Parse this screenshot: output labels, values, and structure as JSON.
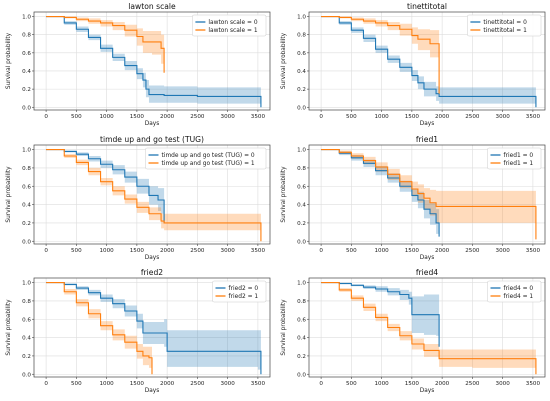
{
  "colors": {
    "group0": "#1f77b4",
    "group1": "#ff7f0e",
    "grid": "#dddddd",
    "axis": "#444444"
  },
  "chart_data": [
    {
      "type": "line",
      "title": "lawton scale",
      "xlabel": "Days",
      "ylabel": "Survival probability",
      "xlim": [
        -200,
        3700
      ],
      "ylim": [
        -0.03,
        1.05
      ],
      "xticks": [
        0,
        500,
        1000,
        1500,
        2000,
        2500,
        3000,
        3500
      ],
      "yticks": [
        0.0,
        0.2,
        0.4,
        0.6,
        0.8,
        1.0
      ],
      "grid": true,
      "legend_position": "top-right",
      "series": [
        {
          "name": "lawton scale = 0",
          "x": [
            0,
            300,
            500,
            700,
            900,
            1100,
            1300,
            1500,
            1600,
            1650,
            1700,
            1950,
            2500,
            3000,
            3500,
            3550
          ],
          "y": [
            1.0,
            0.93,
            0.86,
            0.77,
            0.65,
            0.55,
            0.46,
            0.37,
            0.3,
            0.2,
            0.14,
            0.13,
            0.12,
            0.12,
            0.12,
            0.0
          ],
          "ci_low": [
            1.0,
            0.91,
            0.83,
            0.74,
            0.61,
            0.51,
            0.41,
            0.31,
            0.22,
            0.11,
            0.05,
            0.05,
            0.04,
            0.04,
            0.04,
            0.0
          ],
          "ci_high": [
            1.0,
            0.95,
            0.89,
            0.8,
            0.69,
            0.59,
            0.51,
            0.43,
            0.38,
            0.3,
            0.24,
            0.23,
            0.22,
            0.22,
            0.22,
            0.22
          ]
        },
        {
          "name": "lawton scale = 1",
          "x": [
            0,
            300,
            500,
            700,
            900,
            1100,
            1300,
            1500,
            1600,
            1750,
            1900,
            1950
          ],
          "y": [
            1.0,
            0.99,
            0.97,
            0.95,
            0.93,
            0.9,
            0.85,
            0.78,
            0.72,
            0.72,
            0.65,
            0.38
          ],
          "ci_low": [
            1.0,
            0.98,
            0.95,
            0.92,
            0.89,
            0.85,
            0.78,
            0.68,
            0.6,
            0.58,
            0.48,
            0.18
          ],
          "ci_high": [
            1.0,
            1.0,
            0.99,
            0.98,
            0.96,
            0.94,
            0.91,
            0.87,
            0.84,
            0.84,
            0.8,
            0.62
          ]
        }
      ]
    },
    {
      "type": "line",
      "title": "tinettitotal",
      "xlabel": "Days",
      "ylabel": "Survival probability",
      "xlim": [
        -200,
        3700
      ],
      "ylim": [
        -0.03,
        1.05
      ],
      "xticks": [
        0,
        500,
        1000,
        1500,
        2000,
        2500,
        3000,
        3500
      ],
      "yticks": [
        0.0,
        0.2,
        0.4,
        0.6,
        0.8,
        1.0
      ],
      "grid": true,
      "legend_position": "top-right",
      "series": [
        {
          "name": "tinettitotal = 0",
          "x": [
            0,
            300,
            500,
            700,
            900,
            1100,
            1300,
            1500,
            1600,
            1700,
            1900,
            1950,
            2500,
            3000,
            3500,
            3550
          ],
          "y": [
            1.0,
            0.93,
            0.85,
            0.76,
            0.64,
            0.53,
            0.44,
            0.35,
            0.27,
            0.2,
            0.15,
            0.12,
            0.12,
            0.12,
            0.12,
            0.0
          ],
          "ci_low": [
            1.0,
            0.91,
            0.82,
            0.72,
            0.6,
            0.49,
            0.39,
            0.29,
            0.2,
            0.12,
            0.07,
            0.04,
            0.04,
            0.04,
            0.04,
            0.0
          ],
          "ci_high": [
            1.0,
            0.95,
            0.88,
            0.8,
            0.68,
            0.57,
            0.49,
            0.41,
            0.34,
            0.28,
            0.23,
            0.22,
            0.22,
            0.22,
            0.22,
            0.22
          ]
        },
        {
          "name": "tinettitotal = 1",
          "x": [
            0,
            300,
            500,
            700,
            900,
            1100,
            1300,
            1500,
            1600,
            1800,
            1950
          ],
          "y": [
            1.0,
            0.99,
            0.97,
            0.95,
            0.93,
            0.9,
            0.86,
            0.79,
            0.75,
            0.7,
            0.15
          ],
          "ci_low": [
            1.0,
            0.98,
            0.95,
            0.92,
            0.89,
            0.85,
            0.79,
            0.7,
            0.63,
            0.55,
            0.02
          ],
          "ci_high": [
            1.0,
            1.0,
            0.99,
            0.98,
            0.96,
            0.94,
            0.92,
            0.88,
            0.86,
            0.85,
            0.4
          ]
        }
      ]
    },
    {
      "type": "line",
      "title": "timde up and go test (TUG)",
      "xlabel": "Days",
      "ylabel": "Survival probability",
      "xlim": [
        -200,
        3700
      ],
      "ylim": [
        -0.03,
        1.05
      ],
      "xticks": [
        0,
        500,
        1000,
        1500,
        2000,
        2500,
        3000,
        3500
      ],
      "yticks": [
        0.0,
        0.2,
        0.4,
        0.6,
        0.8,
        1.0
      ],
      "grid": true,
      "legend_position": "top-right",
      "series": [
        {
          "name": "timde up and go test (TUG) = 0",
          "x": [
            0,
            300,
            500,
            700,
            900,
            1100,
            1300,
            1500,
            1700,
            1850,
            1900,
            1950
          ],
          "y": [
            1.0,
            0.98,
            0.95,
            0.9,
            0.84,
            0.78,
            0.7,
            0.6,
            0.5,
            0.45,
            0.45,
            0.2
          ],
          "ci_low": [
            1.0,
            0.97,
            0.93,
            0.87,
            0.8,
            0.73,
            0.64,
            0.52,
            0.4,
            0.33,
            0.3,
            0.05
          ],
          "ci_high": [
            1.0,
            0.99,
            0.97,
            0.93,
            0.88,
            0.83,
            0.76,
            0.68,
            0.6,
            0.58,
            0.58,
            0.4
          ]
        },
        {
          "name": "timde up and go test (TUG) = 1",
          "x": [
            0,
            300,
            500,
            700,
            900,
            1100,
            1300,
            1500,
            1700,
            1900,
            1950,
            2500,
            3000,
            3550
          ],
          "y": [
            1.0,
            0.93,
            0.86,
            0.76,
            0.65,
            0.55,
            0.46,
            0.37,
            0.3,
            0.22,
            0.2,
            0.2,
            0.2,
            0.0
          ],
          "ci_low": [
            1.0,
            0.91,
            0.83,
            0.72,
            0.61,
            0.5,
            0.41,
            0.31,
            0.23,
            0.14,
            0.12,
            0.12,
            0.12,
            0.0
          ],
          "ci_high": [
            1.0,
            0.95,
            0.89,
            0.8,
            0.69,
            0.6,
            0.51,
            0.43,
            0.37,
            0.3,
            0.3,
            0.3,
            0.3,
            0.3
          ]
        }
      ]
    },
    {
      "type": "line",
      "title": "fried1",
      "xlabel": "Days",
      "ylabel": "Survival probability",
      "xlim": [
        -200,
        3700
      ],
      "ylim": [
        -0.03,
        1.05
      ],
      "xticks": [
        0,
        500,
        1000,
        1500,
        2000,
        2500,
        3000,
        3500
      ],
      "yticks": [
        0.0,
        0.2,
        0.4,
        0.6,
        0.8,
        1.0
      ],
      "grid": true,
      "legend_position": "top-right",
      "series": [
        {
          "name": "fried1 = 0",
          "x": [
            0,
            300,
            500,
            700,
            900,
            1100,
            1300,
            1500,
            1600,
            1700,
            1800,
            1900,
            1950
          ],
          "y": [
            1.0,
            0.96,
            0.91,
            0.85,
            0.77,
            0.69,
            0.6,
            0.5,
            0.45,
            0.35,
            0.3,
            0.2,
            0.05
          ],
          "ci_low": [
            1.0,
            0.94,
            0.88,
            0.81,
            0.72,
            0.64,
            0.54,
            0.43,
            0.36,
            0.25,
            0.18,
            0.08,
            0.0
          ],
          "ci_high": [
            1.0,
            0.98,
            0.94,
            0.89,
            0.82,
            0.74,
            0.66,
            0.57,
            0.54,
            0.45,
            0.42,
            0.35,
            0.2
          ]
        },
        {
          "name": "fried1 = 1",
          "x": [
            0,
            300,
            500,
            700,
            900,
            1100,
            1300,
            1500,
            1600,
            1700,
            1800,
            1900,
            3500,
            3550
          ],
          "y": [
            1.0,
            0.97,
            0.93,
            0.88,
            0.81,
            0.73,
            0.65,
            0.57,
            0.52,
            0.47,
            0.42,
            0.38,
            0.38,
            0.02
          ],
          "ci_low": [
            1.0,
            0.95,
            0.9,
            0.84,
            0.76,
            0.67,
            0.58,
            0.49,
            0.42,
            0.35,
            0.28,
            0.2,
            0.2,
            0.0
          ],
          "ci_high": [
            1.0,
            0.99,
            0.96,
            0.92,
            0.86,
            0.79,
            0.72,
            0.65,
            0.62,
            0.58,
            0.56,
            0.55,
            0.55,
            0.55
          ]
        }
      ]
    },
    {
      "type": "line",
      "title": "fried2",
      "xlabel": "Days",
      "ylabel": "Survival probability",
      "xlim": [
        -200,
        3700
      ],
      "ylim": [
        -0.03,
        1.05
      ],
      "xticks": [
        0,
        500,
        1000,
        1500,
        2000,
        2500,
        3000,
        3500
      ],
      "yticks": [
        0.0,
        0.2,
        0.4,
        0.6,
        0.8,
        1.0
      ],
      "grid": true,
      "legend_position": "top-right",
      "series": [
        {
          "name": "fried2 = 0",
          "x": [
            0,
            300,
            500,
            700,
            900,
            1100,
            1300,
            1500,
            1600,
            1950,
            2000,
            3500,
            3550
          ],
          "y": [
            1.0,
            0.98,
            0.94,
            0.89,
            0.83,
            0.77,
            0.69,
            0.58,
            0.45,
            0.45,
            0.25,
            0.25,
            0.0
          ],
          "ci_low": [
            1.0,
            0.97,
            0.92,
            0.86,
            0.79,
            0.72,
            0.63,
            0.5,
            0.33,
            0.3,
            0.08,
            0.05,
            0.0
          ],
          "ci_high": [
            1.0,
            0.99,
            0.96,
            0.92,
            0.87,
            0.82,
            0.75,
            0.66,
            0.57,
            0.6,
            0.48,
            0.48,
            0.48
          ]
        },
        {
          "name": "fried2 = 1",
          "x": [
            0,
            300,
            500,
            700,
            900,
            1100,
            1300,
            1500,
            1600,
            1700,
            1750
          ],
          "y": [
            1.0,
            0.9,
            0.78,
            0.66,
            0.53,
            0.43,
            0.35,
            0.25,
            0.2,
            0.18,
            0.0
          ],
          "ci_low": [
            1.0,
            0.87,
            0.74,
            0.61,
            0.48,
            0.37,
            0.28,
            0.17,
            0.1,
            0.07,
            0.0
          ],
          "ci_high": [
            1.0,
            0.93,
            0.82,
            0.71,
            0.58,
            0.49,
            0.42,
            0.33,
            0.3,
            0.3,
            0.3
          ]
        }
      ]
    },
    {
      "type": "line",
      "title": "fried4",
      "xlabel": "Days",
      "ylabel": "Survival probability",
      "xlim": [
        -200,
        3700
      ],
      "ylim": [
        -0.03,
        1.05
      ],
      "xticks": [
        0,
        500,
        1000,
        1500,
        2000,
        2500,
        3000,
        3500
      ],
      "yticks": [
        0.0,
        0.2,
        0.4,
        0.6,
        0.8,
        1.0
      ],
      "grid": true,
      "legend_position": "top-right",
      "series": [
        {
          "name": "fried4 = 0",
          "x": [
            0,
            300,
            500,
            700,
            900,
            1100,
            1300,
            1450,
            1500,
            1700,
            1900,
            1950
          ],
          "y": [
            1.0,
            0.99,
            0.97,
            0.95,
            0.93,
            0.9,
            0.87,
            0.83,
            0.65,
            0.65,
            0.65,
            0.3
          ],
          "ci_low": [
            1.0,
            0.98,
            0.96,
            0.93,
            0.9,
            0.86,
            0.81,
            0.76,
            0.45,
            0.43,
            0.42,
            0.08
          ],
          "ci_high": [
            1.0,
            1.0,
            0.98,
            0.97,
            0.96,
            0.94,
            0.92,
            0.9,
            0.85,
            0.87,
            0.87,
            0.55
          ]
        },
        {
          "name": "fried4 = 1",
          "x": [
            0,
            300,
            500,
            700,
            900,
            1100,
            1300,
            1500,
            1700,
            1950,
            2500,
            3000,
            3500,
            3550
          ],
          "y": [
            1.0,
            0.92,
            0.83,
            0.73,
            0.62,
            0.51,
            0.42,
            0.33,
            0.26,
            0.17,
            0.17,
            0.17,
            0.17,
            0.0
          ],
          "ci_low": [
            1.0,
            0.9,
            0.8,
            0.69,
            0.58,
            0.47,
            0.37,
            0.27,
            0.19,
            0.08,
            0.07,
            0.07,
            0.07,
            0.0
          ],
          "ci_high": [
            1.0,
            0.94,
            0.86,
            0.77,
            0.66,
            0.55,
            0.47,
            0.39,
            0.33,
            0.27,
            0.27,
            0.27,
            0.27,
            0.27
          ]
        }
      ]
    }
  ]
}
